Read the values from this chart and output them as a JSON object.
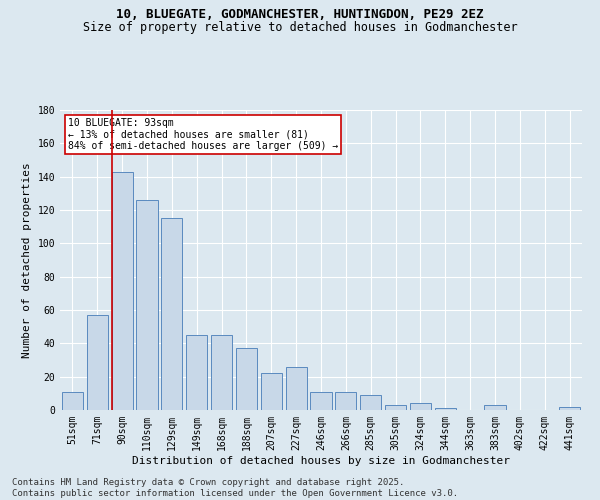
{
  "title_line1": "10, BLUEGATE, GODMANCHESTER, HUNTINGDON, PE29 2EZ",
  "title_line2": "Size of property relative to detached houses in Godmanchester",
  "xlabel": "Distribution of detached houses by size in Godmanchester",
  "ylabel": "Number of detached properties",
  "bar_color": "#c8d8e8",
  "bar_edge_color": "#5a8abf",
  "categories": [
    "51sqm",
    "71sqm",
    "90sqm",
    "110sqm",
    "129sqm",
    "149sqm",
    "168sqm",
    "188sqm",
    "207sqm",
    "227sqm",
    "246sqm",
    "266sqm",
    "285sqm",
    "305sqm",
    "324sqm",
    "344sqm",
    "363sqm",
    "383sqm",
    "402sqm",
    "422sqm",
    "441sqm"
  ],
  "values": [
    11,
    57,
    143,
    126,
    115,
    45,
    45,
    37,
    22,
    26,
    11,
    11,
    9,
    3,
    4,
    1,
    0,
    3,
    0,
    0,
    2
  ],
  "marker_bar_index": 2,
  "marker_color": "#cc0000",
  "annotation_text": "10 BLUEGATE: 93sqm\n← 13% of detached houses are smaller (81)\n84% of semi-detached houses are larger (509) →",
  "annotation_box_color": "#ffffff",
  "annotation_box_edge": "#cc0000",
  "ylim": [
    0,
    180
  ],
  "yticks": [
    0,
    20,
    40,
    60,
    80,
    100,
    120,
    140,
    160,
    180
  ],
  "background_color": "#dce8f0",
  "grid_color": "#ffffff",
  "footer": "Contains HM Land Registry data © Crown copyright and database right 2025.\nContains public sector information licensed under the Open Government Licence v3.0.",
  "title_fontsize": 9,
  "subtitle_fontsize": 8.5,
  "axis_label_fontsize": 8,
  "tick_fontsize": 7,
  "footer_fontsize": 6.5
}
